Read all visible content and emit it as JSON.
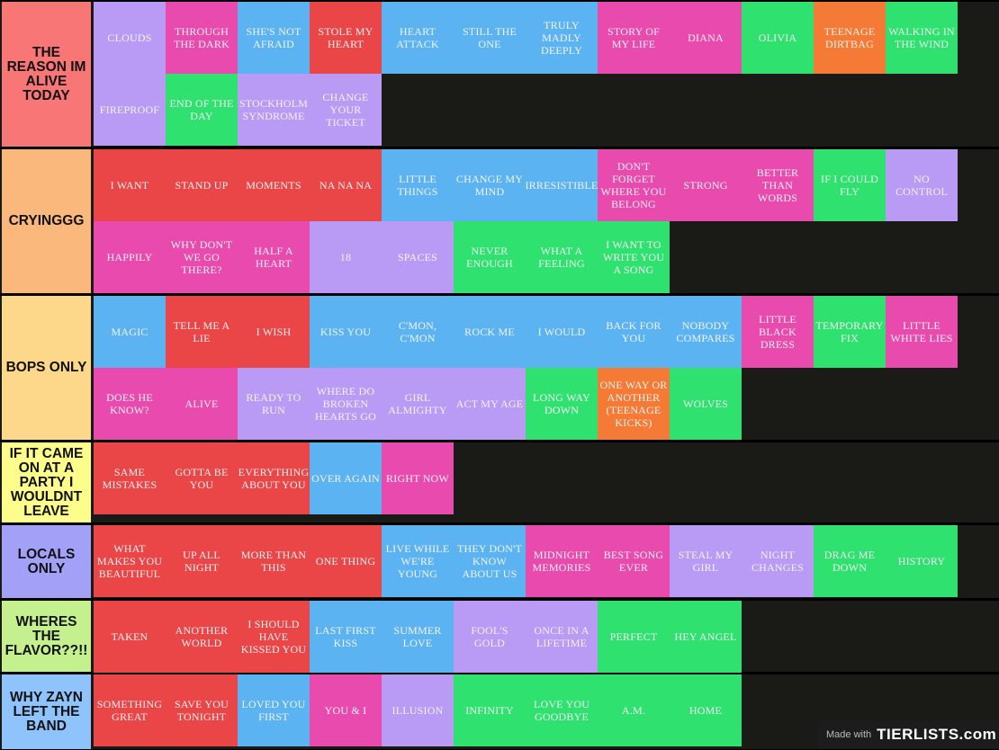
{
  "colors": {
    "red": "#ea4547",
    "pink": "#e84aae",
    "blue": "#5bb3f2",
    "purple": "#b99af5",
    "green": "#2fe16f",
    "orange": "#f47a35"
  },
  "tiers": [
    {
      "label": "THE REASON IM ALIVE TODAY",
      "color": "#f87676",
      "items": [
        {
          "title": "CLOUDS",
          "color": "purple"
        },
        {
          "title": "THROUGH THE DARK",
          "color": "pink"
        },
        {
          "title": "SHE'S NOT AFRAID",
          "color": "blue"
        },
        {
          "title": "STOLE MY HEART",
          "color": "red"
        },
        {
          "title": "HEART ATTACK",
          "color": "blue"
        },
        {
          "title": "STILL THE ONE",
          "color": "blue"
        },
        {
          "title": "TRULY MADLY DEEPLY",
          "color": "blue"
        },
        {
          "title": "STORY OF MY LIFE",
          "color": "pink"
        },
        {
          "title": "DIANA",
          "color": "pink"
        },
        {
          "title": "OLIVIA",
          "color": "green"
        },
        {
          "title": "TEENAGE DIRTBAG",
          "color": "orange"
        },
        {
          "title": "WALKING IN THE WIND",
          "color": "green"
        },
        {
          "title": "FIREPROOF",
          "color": "purple"
        },
        {
          "title": "END OF THE DAY",
          "color": "green"
        },
        {
          "title": "STOCKHOLM SYNDROME",
          "color": "purple"
        },
        {
          "title": "CHANGE YOUR TICKET",
          "color": "purple"
        }
      ]
    },
    {
      "label": "CRYINGGG",
      "color": "#fbb87c",
      "items": [
        {
          "title": "I WANT",
          "color": "red"
        },
        {
          "title": "STAND UP",
          "color": "red"
        },
        {
          "title": "MOMENTS",
          "color": "red"
        },
        {
          "title": "NA NA NA",
          "color": "red"
        },
        {
          "title": "LITTLE THINGS",
          "color": "blue"
        },
        {
          "title": "CHANGE MY MIND",
          "color": "blue"
        },
        {
          "title": "IRRESISTIBLE",
          "color": "blue"
        },
        {
          "title": "DON'T FORGET WHERE YOU BELONG",
          "color": "pink"
        },
        {
          "title": "STRONG",
          "color": "pink"
        },
        {
          "title": "BETTER THAN WORDS",
          "color": "pink"
        },
        {
          "title": "IF I COULD FLY",
          "color": "green"
        },
        {
          "title": "NO CONTROL",
          "color": "purple"
        },
        {
          "title": "HAPPILY",
          "color": "pink"
        },
        {
          "title": "WHY DON'T WE GO THERE?",
          "color": "pink"
        },
        {
          "title": "HALF A HEART",
          "color": "pink"
        },
        {
          "title": "18",
          "color": "purple"
        },
        {
          "title": "SPACES",
          "color": "purple"
        },
        {
          "title": "NEVER ENOUGH",
          "color": "green"
        },
        {
          "title": "WHAT A FEELING",
          "color": "green"
        },
        {
          "title": "I WANT TO WRITE YOU A SONG",
          "color": "green"
        }
      ]
    },
    {
      "label": "BOPS ONLY",
      "color": "#fdd78a",
      "items": [
        {
          "title": "MAGIC",
          "color": "blue"
        },
        {
          "title": "TELL ME A LIE",
          "color": "red"
        },
        {
          "title": "I WISH",
          "color": "red"
        },
        {
          "title": "KISS YOU",
          "color": "blue"
        },
        {
          "title": "C'MON, C'MON",
          "color": "blue"
        },
        {
          "title": "ROCK ME",
          "color": "blue"
        },
        {
          "title": "I WOULD",
          "color": "blue"
        },
        {
          "title": "BACK FOR YOU",
          "color": "blue"
        },
        {
          "title": "NOBODY COMPARES",
          "color": "blue"
        },
        {
          "title": "LITTLE BLACK DRESS",
          "color": "pink"
        },
        {
          "title": "TEMPORARY FIX",
          "color": "green"
        },
        {
          "title": "LITTLE WHITE LIES",
          "color": "pink"
        },
        {
          "title": "DOES HE KNOW?",
          "color": "pink"
        },
        {
          "title": "ALIVE",
          "color": "pink"
        },
        {
          "title": "READY TO RUN",
          "color": "purple"
        },
        {
          "title": "WHERE DO BROKEN HEARTS GO",
          "color": "purple"
        },
        {
          "title": "GIRL ALMIGHTY",
          "color": "purple"
        },
        {
          "title": "ACT MY AGE",
          "color": "purple"
        },
        {
          "title": "LONG WAY DOWN",
          "color": "green"
        },
        {
          "title": "ONE WAY OR ANOTHER (TEENAGE KICKS)",
          "color": "orange"
        },
        {
          "title": "WOLVES",
          "color": "green"
        }
      ]
    },
    {
      "label": "IF IT CAME ON AT A PARTY I WOULDNT LEAVE",
      "color": "#fdfd8b",
      "items": [
        {
          "title": "SAME MISTAKES",
          "color": "red"
        },
        {
          "title": "GOTTA BE YOU",
          "color": "red"
        },
        {
          "title": "EVERYTHING ABOUT YOU",
          "color": "red"
        },
        {
          "title": "OVER AGAIN",
          "color": "blue"
        },
        {
          "title": "RIGHT NOW",
          "color": "pink"
        }
      ]
    },
    {
      "label": "LOCALS ONLY",
      "color": "#a3a1f7",
      "items": [
        {
          "title": "WHAT MAKES YOU BEAUTIFUL",
          "color": "red"
        },
        {
          "title": "UP ALL NIGHT",
          "color": "red"
        },
        {
          "title": "MORE THAN THIS",
          "color": "red"
        },
        {
          "title": "ONE THING",
          "color": "red"
        },
        {
          "title": "LIVE WHILE WE'RE YOUNG",
          "color": "blue"
        },
        {
          "title": "THEY DON'T KNOW ABOUT US",
          "color": "blue"
        },
        {
          "title": "MIDNIGHT MEMORIES",
          "color": "pink"
        },
        {
          "title": "BEST SONG EVER",
          "color": "pink"
        },
        {
          "title": "STEAL MY GIRL",
          "color": "purple"
        },
        {
          "title": "NIGHT CHANGES",
          "color": "purple"
        },
        {
          "title": "DRAG ME DOWN",
          "color": "green"
        },
        {
          "title": "HISTORY",
          "color": "green"
        }
      ]
    },
    {
      "label": "WHERES THE FLAVOR??!!",
      "color": "#c4f08d",
      "items": [
        {
          "title": "TAKEN",
          "color": "red"
        },
        {
          "title": "ANOTHER WORLD",
          "color": "red"
        },
        {
          "title": "I SHOULD HAVE KISSED YOU",
          "color": "red"
        },
        {
          "title": "LAST FIRST KISS",
          "color": "blue"
        },
        {
          "title": "SUMMER LOVE",
          "color": "blue"
        },
        {
          "title": "FOOL'S GOLD",
          "color": "purple"
        },
        {
          "title": "ONCE IN A LIFETIME",
          "color": "purple"
        },
        {
          "title": "PERFECT",
          "color": "green"
        },
        {
          "title": "HEY ANGEL",
          "color": "green"
        }
      ]
    },
    {
      "label": "WHY ZAYN LEFT THE BAND",
      "color": "#8fc3fb",
      "items": [
        {
          "title": "SOMETHING GREAT",
          "color": "red"
        },
        {
          "title": "SAVE YOU TONIGHT",
          "color": "red"
        },
        {
          "title": "LOVED YOU FIRST",
          "color": "blue"
        },
        {
          "title": "YOU & I",
          "color": "pink"
        },
        {
          "title": "ILLUSION",
          "color": "purple"
        },
        {
          "title": "INFINITY",
          "color": "green"
        },
        {
          "title": "LOVE YOU GOODBYE",
          "color": "green"
        },
        {
          "title": "A.M.",
          "color": "green"
        },
        {
          "title": "HOME",
          "color": "green"
        }
      ]
    }
  ],
  "watermark": {
    "made_with": "Made with",
    "logo": "TIERLISTS.com"
  }
}
